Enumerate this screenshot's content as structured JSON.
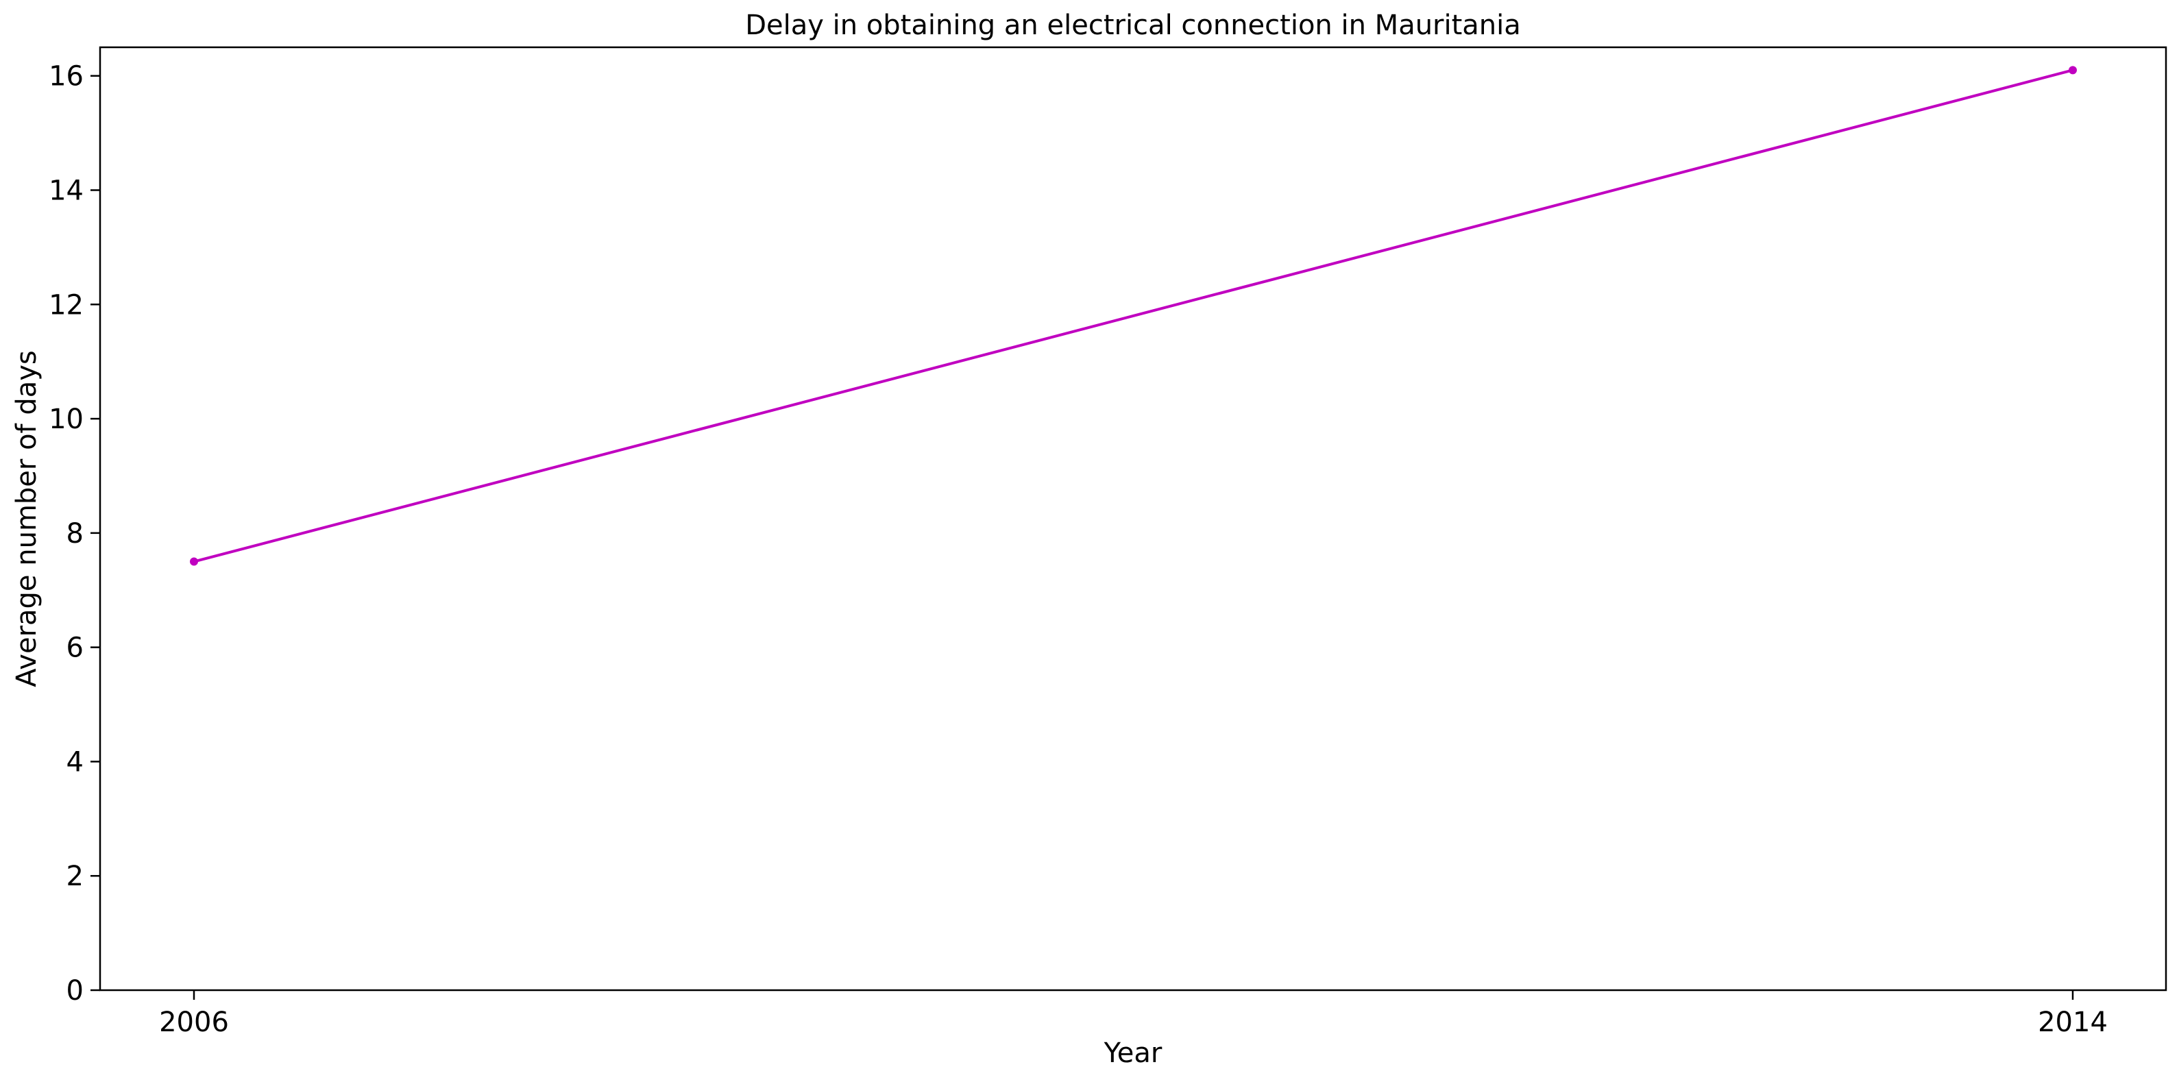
{
  "chart_data": {
    "type": "line",
    "title": "Delay in obtaining an electrical connection in Mauritania",
    "xlabel": "Year",
    "ylabel": "Average number of days",
    "x": [
      "2006",
      "2014"
    ],
    "series": [
      {
        "values": [
          7.5,
          16.1
        ],
        "color": "#c000c0"
      }
    ],
    "xticks": [
      "2006",
      "2014"
    ],
    "yticks": [
      "0",
      "2",
      "4",
      "6",
      "8",
      "10",
      "12",
      "14",
      "16"
    ],
    "ylim": [
      0,
      16.5
    ],
    "grid": false,
    "legend": "none"
  }
}
